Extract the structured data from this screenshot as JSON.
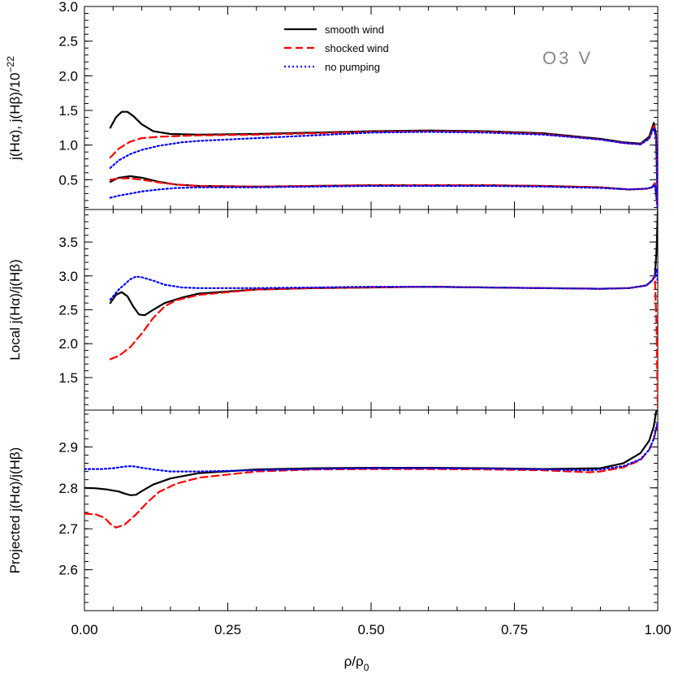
{
  "chart_data": {
    "type": "line",
    "shared_x": {
      "label_main": "ρ/ρ",
      "label_sub": "0",
      "xlim": [
        0,
        1
      ],
      "ticks": [
        0,
        0.25,
        0.5,
        0.75,
        1.0
      ],
      "tick_labels": [
        "0.00",
        "0.25",
        "0.50",
        "0.75",
        "1.00"
      ]
    },
    "legend": {
      "placement": "top-center",
      "entries": [
        {
          "label": "smooth wind",
          "color": "#000000",
          "dash": "solid"
        },
        {
          "label": "shocked wind",
          "color": "#ff0000",
          "dash": "dashed"
        },
        {
          "label": "no pumping",
          "color": "#0000ff",
          "dash": "dotted"
        }
      ]
    },
    "annotation": {
      "text": "O3 V",
      "color": "#888888"
    },
    "panels": [
      {
        "ylabel": "j(Hα), j(Hβ)/10",
        "ylabel_exp": "−22",
        "ylim": [
          0.07,
          3.0
        ],
        "ticks": [
          0.5,
          1.0,
          1.5,
          2.0,
          2.5,
          3.0
        ],
        "tick_labels": [
          "0.5",
          "1.0",
          "1.5",
          "2.0",
          "2.5",
          "3.0"
        ],
        "series": [
          {
            "key": "smooth",
            "group": "Hα",
            "x": [
              0.045,
              0.055,
              0.065,
              0.075,
              0.085,
              0.1,
              0.12,
              0.15,
              0.2,
              0.3,
              0.4,
              0.5,
              0.6,
              0.7,
              0.8,
              0.9,
              0.94,
              0.97,
              0.985,
              0.993,
              0.997,
              1.0
            ],
            "y": [
              1.25,
              1.4,
              1.48,
              1.48,
              1.42,
              1.3,
              1.2,
              1.16,
              1.15,
              1.16,
              1.18,
              1.2,
              1.21,
              1.2,
              1.17,
              1.09,
              1.04,
              1.02,
              1.12,
              1.32,
              1.15,
              0.2
            ]
          },
          {
            "key": "shocked",
            "group": "Hα",
            "x": [
              0.045,
              0.06,
              0.08,
              0.1,
              0.13,
              0.16,
              0.2,
              0.3,
              0.4,
              0.5,
              0.6,
              0.7,
              0.8,
              0.9,
              0.94,
              0.97,
              0.985,
              0.993,
              0.997,
              1.0
            ],
            "y": [
              0.82,
              0.95,
              1.05,
              1.1,
              1.12,
              1.13,
              1.14,
              1.15,
              1.17,
              1.19,
              1.2,
              1.19,
              1.16,
              1.08,
              1.03,
              1.01,
              1.1,
              1.28,
              1.1,
              0.1
            ]
          },
          {
            "key": "nopump",
            "group": "Hα",
            "x": [
              0.045,
              0.06,
              0.08,
              0.1,
              0.13,
              0.17,
              0.2,
              0.3,
              0.4,
              0.5,
              0.6,
              0.7,
              0.8,
              0.9,
              0.94,
              0.97,
              0.985,
              0.993,
              0.997,
              1.0
            ],
            "y": [
              0.67,
              0.78,
              0.87,
              0.93,
              0.99,
              1.04,
              1.06,
              1.1,
              1.14,
              1.18,
              1.19,
              1.18,
              1.15,
              1.08,
              1.03,
              1.01,
              1.09,
              1.25,
              1.1,
              0.15
            ]
          },
          {
            "key": "smooth",
            "group": "Hβ",
            "x": [
              0.045,
              0.06,
              0.08,
              0.1,
              0.13,
              0.16,
              0.2,
              0.3,
              0.4,
              0.5,
              0.6,
              0.7,
              0.8,
              0.9,
              0.95,
              0.98,
              0.99,
              0.995,
              1.0
            ],
            "y": [
              0.47,
              0.53,
              0.55,
              0.53,
              0.47,
              0.43,
              0.41,
              0.4,
              0.41,
              0.42,
              0.42,
              0.42,
              0.41,
              0.39,
              0.36,
              0.37,
              0.39,
              0.45,
              0.08
            ]
          },
          {
            "key": "shocked",
            "group": "Hβ",
            "x": [
              0.045,
              0.06,
              0.08,
              0.1,
              0.13,
              0.16,
              0.2,
              0.3,
              0.4,
              0.5,
              0.6,
              0.7,
              0.8,
              0.9,
              0.95,
              0.98,
              0.99,
              0.995,
              1.0
            ],
            "y": [
              0.5,
              0.52,
              0.52,
              0.5,
              0.46,
              0.43,
              0.41,
              0.4,
              0.41,
              0.42,
              0.42,
              0.42,
              0.41,
              0.39,
              0.36,
              0.37,
              0.39,
              0.44,
              0.08
            ]
          },
          {
            "key": "nopump",
            "group": "Hβ",
            "x": [
              0.045,
              0.06,
              0.08,
              0.1,
              0.13,
              0.16,
              0.2,
              0.3,
              0.4,
              0.5,
              0.6,
              0.7,
              0.8,
              0.9,
              0.95,
              0.98,
              0.99,
              0.995,
              1.0
            ],
            "y": [
              0.24,
              0.27,
              0.3,
              0.33,
              0.36,
              0.38,
              0.39,
              0.39,
              0.4,
              0.41,
              0.41,
              0.41,
              0.4,
              0.38,
              0.36,
              0.37,
              0.39,
              0.43,
              0.08
            ]
          }
        ]
      },
      {
        "ylabel": "Local j(Hα)/j(Hβ)",
        "ylim": [
          1.02,
          3.98
        ],
        "ticks": [
          1.5,
          2.0,
          2.5,
          3.0,
          3.5
        ],
        "tick_labels": [
          "1.5",
          "2.0",
          "2.5",
          "3.0",
          "3.5"
        ],
        "series": [
          {
            "key": "smooth",
            "x": [
              0.045,
              0.055,
              0.065,
              0.075,
              0.085,
              0.095,
              0.105,
              0.12,
              0.14,
              0.17,
              0.2,
              0.3,
              0.4,
              0.5,
              0.6,
              0.7,
              0.8,
              0.9,
              0.95,
              0.98,
              0.99,
              0.995,
              0.998,
              1.0
            ],
            "y": [
              2.6,
              2.72,
              2.76,
              2.7,
              2.55,
              2.43,
              2.42,
              2.5,
              2.6,
              2.68,
              2.74,
              2.8,
              2.82,
              2.83,
              2.84,
              2.83,
              2.82,
              2.81,
              2.82,
              2.86,
              2.93,
              3.0,
              3.4,
              3.95
            ]
          },
          {
            "key": "shocked",
            "x": [
              0.045,
              0.06,
              0.08,
              0.1,
              0.12,
              0.14,
              0.16,
              0.2,
              0.3,
              0.4,
              0.5,
              0.6,
              0.7,
              0.8,
              0.9,
              0.95,
              0.98,
              0.99,
              0.995,
              0.998,
              1.0
            ],
            "y": [
              1.77,
              1.82,
              1.95,
              2.15,
              2.38,
              2.55,
              2.64,
              2.72,
              2.8,
              2.82,
              2.83,
              2.84,
              2.83,
              2.82,
              2.81,
              2.82,
              2.86,
              2.93,
              3.0,
              2.2,
              1.05
            ]
          },
          {
            "key": "nopump",
            "x": [
              0.045,
              0.06,
              0.08,
              0.09,
              0.1,
              0.12,
              0.14,
              0.17,
              0.2,
              0.3,
              0.4,
              0.5,
              0.6,
              0.7,
              0.8,
              0.9,
              0.95,
              0.98,
              0.99,
              0.995,
              0.998,
              1.0
            ],
            "y": [
              2.65,
              2.8,
              2.95,
              2.99,
              2.98,
              2.93,
              2.87,
              2.83,
              2.82,
              2.82,
              2.83,
              2.84,
              2.84,
              2.83,
              2.82,
              2.81,
              2.82,
              2.86,
              2.93,
              3.0,
              3.1,
              2.9
            ]
          }
        ]
      },
      {
        "ylabel": "Projected j(Hα)/j(Hβ)",
        "ylim": [
          2.5,
          2.99
        ],
        "ticks": [
          2.6,
          2.7,
          2.8,
          2.9
        ],
        "tick_labels": [
          "2.6",
          "2.7",
          "2.8",
          "2.9"
        ],
        "series": [
          {
            "key": "smooth",
            "x": [
              0.0,
              0.02,
              0.04,
              0.06,
              0.07,
              0.08,
              0.09,
              0.1,
              0.12,
              0.15,
              0.2,
              0.3,
              0.4,
              0.5,
              0.6,
              0.7,
              0.8,
              0.9,
              0.94,
              0.97,
              0.985,
              0.993,
              0.997,
              1.0
            ],
            "y": [
              2.8,
              2.799,
              2.796,
              2.791,
              2.786,
              2.782,
              2.783,
              2.792,
              2.808,
              2.823,
              2.836,
              2.845,
              2.848,
              2.849,
              2.849,
              2.848,
              2.846,
              2.848,
              2.86,
              2.885,
              2.915,
              2.95,
              2.985,
              3.0
            ]
          },
          {
            "key": "shocked",
            "x": [
              0.0,
              0.02,
              0.035,
              0.045,
              0.055,
              0.07,
              0.09,
              0.11,
              0.13,
              0.16,
              0.2,
              0.3,
              0.4,
              0.5,
              0.6,
              0.7,
              0.8,
              0.88,
              0.9,
              0.94,
              0.97,
              0.985,
              0.993,
              0.997,
              1.0
            ],
            "y": [
              2.737,
              2.735,
              2.727,
              2.712,
              2.703,
              2.71,
              2.735,
              2.765,
              2.79,
              2.81,
              2.825,
              2.84,
              2.845,
              2.846,
              2.846,
              2.845,
              2.843,
              2.838,
              2.84,
              2.85,
              2.868,
              2.893,
              2.92,
              2.94,
              2.96
            ]
          },
          {
            "key": "nopump",
            "x": [
              0.0,
              0.03,
              0.05,
              0.07,
              0.08,
              0.09,
              0.1,
              0.12,
              0.15,
              0.2,
              0.3,
              0.4,
              0.5,
              0.6,
              0.7,
              0.8,
              0.88,
              0.9,
              0.94,
              0.97,
              0.985,
              0.993,
              0.997,
              1.0
            ],
            "y": [
              2.846,
              2.846,
              2.848,
              2.852,
              2.853,
              2.852,
              2.849,
              2.845,
              2.84,
              2.84,
              2.843,
              2.846,
              2.848,
              2.848,
              2.847,
              2.845,
              2.843,
              2.845,
              2.853,
              2.87,
              2.893,
              2.92,
              2.945,
              2.96
            ]
          }
        ]
      }
    ]
  }
}
